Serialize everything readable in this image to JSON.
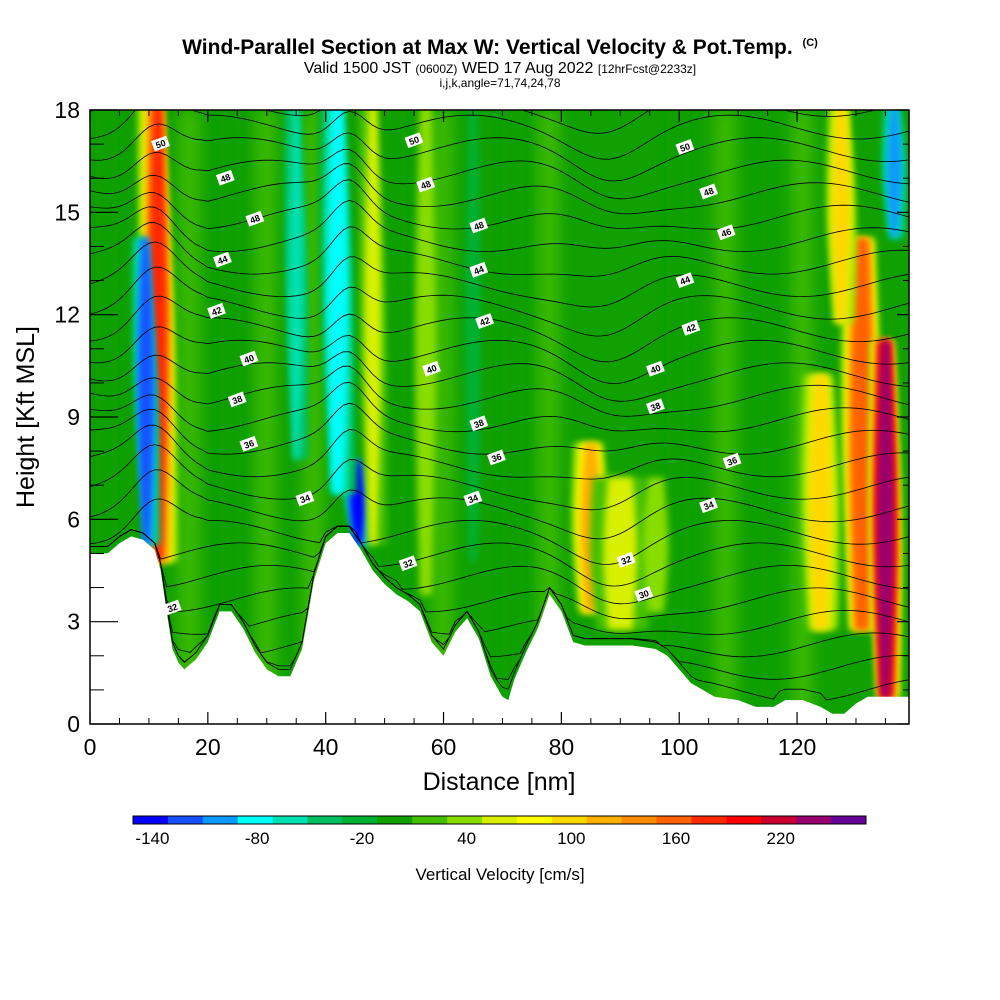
{
  "chart_data": {
    "type": "heatmap",
    "title": "Wind-Parallel Section at Max W: Vertical Velocity & Pot.Temp.",
    "title_mark": "(C)",
    "subtitle_main_a": "Valid 1500 JST",
    "subtitle_utc": "(0600Z)",
    "subtitle_main_b": "WED 17 Aug 2022",
    "subtitle_run": "[12hrFcst@2233z]",
    "subtitle2": "i,j,k,angle=71,74,24,78",
    "xlabel": "Distance [nm]",
    "ylabel": "Height [Kft MSL]",
    "xlim": [
      0,
      139
    ],
    "ylim": [
      0,
      18
    ],
    "xticks": [
      0,
      20,
      40,
      60,
      80,
      100,
      120
    ],
    "yticks": [
      0,
      3,
      6,
      9,
      12,
      15,
      18
    ],
    "colorbar": {
      "label": "Vertical Velocity [cm/s]",
      "min": -150,
      "step": 20,
      "tick_values": [
        -140,
        -80,
        -20,
        40,
        100,
        160,
        220
      ],
      "tick_labels": [
        "-140",
        "-80",
        "-20",
        "40",
        "100",
        "160",
        "220"
      ],
      "colors": [
        "#0000ff",
        "#1450ff",
        "#0a9aff",
        "#00ffff",
        "#00e0b0",
        "#00c060",
        "#00b030",
        "#10a000",
        "#44c000",
        "#88dd00",
        "#d8f000",
        "#ffff00",
        "#ffd800",
        "#ffb000",
        "#ff8c00",
        "#ff6000",
        "#ff2800",
        "#ff0000",
        "#cc0030",
        "#990070",
        "#660099"
      ]
    },
    "velocity_features": [
      {
        "x": 11.5,
        "y_from": 5.0,
        "y_to": 18,
        "value": 170,
        "width_nm": 2.2
      },
      {
        "x": 9.5,
        "y_from": 5.5,
        "y_to": 14,
        "value": -130,
        "width_nm": 1.2
      },
      {
        "x": 45.5,
        "y_from": 5.5,
        "y_to": 7.5,
        "value": -140,
        "width_nm": 1.5
      },
      {
        "x": 42.0,
        "y_from": 7.0,
        "y_to": 18,
        "value": -90,
        "width_nm": 2.5
      },
      {
        "x": 35.0,
        "y_from": 8.0,
        "y_to": 18,
        "value": -70,
        "width_nm": 1.5
      },
      {
        "x": 48.0,
        "y_from": 5.5,
        "y_to": 18,
        "value": 50,
        "width_nm": 2.0
      },
      {
        "x": 85.0,
        "y_from": 3.5,
        "y_to": 8.0,
        "value": 110,
        "width_nm": 3.0
      },
      {
        "x": 90.0,
        "y_from": 3.0,
        "y_to": 7.0,
        "value": 50,
        "width_nm": 6.0
      },
      {
        "x": 131.0,
        "y_from": 3.0,
        "y_to": 14,
        "value": 160,
        "width_nm": 3.0
      },
      {
        "x": 135.0,
        "y_from": 1.0,
        "y_to": 11,
        "value": 230,
        "width_nm": 2.0
      },
      {
        "x": 124.0,
        "y_from": 3.0,
        "y_to": 10,
        "value": 90,
        "width_nm": 3.0
      },
      {
        "x": 136.5,
        "y_from": 14.5,
        "y_to": 18,
        "value": -100,
        "width_nm": 1.5
      },
      {
        "x": 127.5,
        "y_from": 12.0,
        "y_to": 18,
        "value": 90,
        "width_nm": 2.0
      },
      {
        "x": 96.0,
        "y_from": 3.5,
        "y_to": 7.0,
        "value": 40,
        "width_nm": 4.0
      },
      {
        "x": 57.0,
        "y_from": 4.0,
        "y_to": 18,
        "value": 30,
        "width_nm": 3.0
      },
      {
        "x": 65.0,
        "y_from": 5.0,
        "y_to": 18,
        "value": -20,
        "width_nm": 2.0
      }
    ],
    "terrain_kft": [
      [
        0,
        5.0
      ],
      [
        3,
        5.0
      ],
      [
        5,
        5.3
      ],
      [
        7,
        5.5
      ],
      [
        9,
        5.4
      ],
      [
        11,
        5.1
      ],
      [
        12,
        4.5
      ],
      [
        13,
        3.3
      ],
      [
        14,
        2.2
      ],
      [
        15,
        1.8
      ],
      [
        16,
        1.6
      ],
      [
        18,
        1.9
      ],
      [
        20,
        2.4
      ],
      [
        22,
        3.3
      ],
      [
        24,
        3.3
      ],
      [
        26,
        2.8
      ],
      [
        28,
        2.1
      ],
      [
        30,
        1.6
      ],
      [
        32,
        1.4
      ],
      [
        34,
        1.4
      ],
      [
        36,
        2.2
      ],
      [
        38,
        4.2
      ],
      [
        40,
        5.3
      ],
      [
        42,
        5.6
      ],
      [
        44,
        5.6
      ],
      [
        46,
        5.1
      ],
      [
        48,
        4.5
      ],
      [
        50,
        4.1
      ],
      [
        52,
        3.8
      ],
      [
        54,
        3.6
      ],
      [
        56,
        3.3
      ],
      [
        58,
        2.4
      ],
      [
        60,
        2.0
      ],
      [
        62,
        2.7
      ],
      [
        64,
        3.1
      ],
      [
        66,
        2.5
      ],
      [
        68,
        1.4
      ],
      [
        70,
        0.8
      ],
      [
        71,
        0.7
      ],
      [
        72,
        1.3
      ],
      [
        74,
        2.1
      ],
      [
        76,
        2.8
      ],
      [
        78,
        3.8
      ],
      [
        80,
        3.3
      ],
      [
        82,
        2.4
      ],
      [
        84,
        2.3
      ],
      [
        88,
        2.3
      ],
      [
        92,
        2.3
      ],
      [
        96,
        2.2
      ],
      [
        98,
        2.0
      ],
      [
        100,
        1.6
      ],
      [
        102,
        1.2
      ],
      [
        104,
        1.0
      ],
      [
        106,
        0.8
      ],
      [
        110,
        0.7
      ],
      [
        113,
        0.5
      ],
      [
        116,
        0.5
      ],
      [
        118,
        0.7
      ],
      [
        121,
        0.7
      ],
      [
        124,
        0.5
      ],
      [
        126,
        0.3
      ],
      [
        128,
        0.3
      ],
      [
        130,
        0.6
      ],
      [
        132,
        0.8
      ],
      [
        136,
        0.8
      ],
      [
        139,
        0.8
      ]
    ],
    "theta_contours": {
      "levels_C": [
        30,
        32,
        34,
        36,
        38,
        40,
        42,
        44,
        46,
        48,
        50
      ],
      "labels": [
        {
          "text": "50",
          "x": 12,
          "y": 17.0
        },
        {
          "text": "48",
          "x": 23,
          "y": 16.0
        },
        {
          "text": "48",
          "x": 28,
          "y": 14.8
        },
        {
          "text": "44",
          "x": 22.5,
          "y": 13.6
        },
        {
          "text": "42",
          "x": 21.5,
          "y": 12.1
        },
        {
          "text": "40",
          "x": 27,
          "y": 10.7
        },
        {
          "text": "38",
          "x": 25,
          "y": 9.5
        },
        {
          "text": "36",
          "x": 27,
          "y": 8.2
        },
        {
          "text": "34",
          "x": 36.5,
          "y": 6.6
        },
        {
          "text": "32",
          "x": 14,
          "y": 3.4
        },
        {
          "text": "50",
          "x": 55,
          "y": 17.1
        },
        {
          "text": "48",
          "x": 57,
          "y": 15.8
        },
        {
          "text": "48",
          "x": 66,
          "y": 14.6
        },
        {
          "text": "44",
          "x": 66,
          "y": 13.3
        },
        {
          "text": "42",
          "x": 67,
          "y": 11.8
        },
        {
          "text": "40",
          "x": 58,
          "y": 10.4
        },
        {
          "text": "38",
          "x": 66,
          "y": 8.8
        },
        {
          "text": "36",
          "x": 69,
          "y": 7.8
        },
        {
          "text": "34",
          "x": 65,
          "y": 6.6
        },
        {
          "text": "32",
          "x": 54,
          "y": 4.7
        },
        {
          "text": "50",
          "x": 101,
          "y": 16.9
        },
        {
          "text": "48",
          "x": 105,
          "y": 15.6
        },
        {
          "text": "46",
          "x": 108,
          "y": 14.4
        },
        {
          "text": "44",
          "x": 101,
          "y": 13.0
        },
        {
          "text": "42",
          "x": 102,
          "y": 11.6
        },
        {
          "text": "40",
          "x": 96,
          "y": 10.4
        },
        {
          "text": "38",
          "x": 96,
          "y": 9.3
        },
        {
          "text": "36",
          "x": 109,
          "y": 7.7
        },
        {
          "text": "34",
          "x": 105,
          "y": 6.4
        },
        {
          "text": "32",
          "x": 91,
          "y": 4.8
        },
        {
          "text": "30",
          "x": 94,
          "y": 3.8
        }
      ]
    }
  }
}
